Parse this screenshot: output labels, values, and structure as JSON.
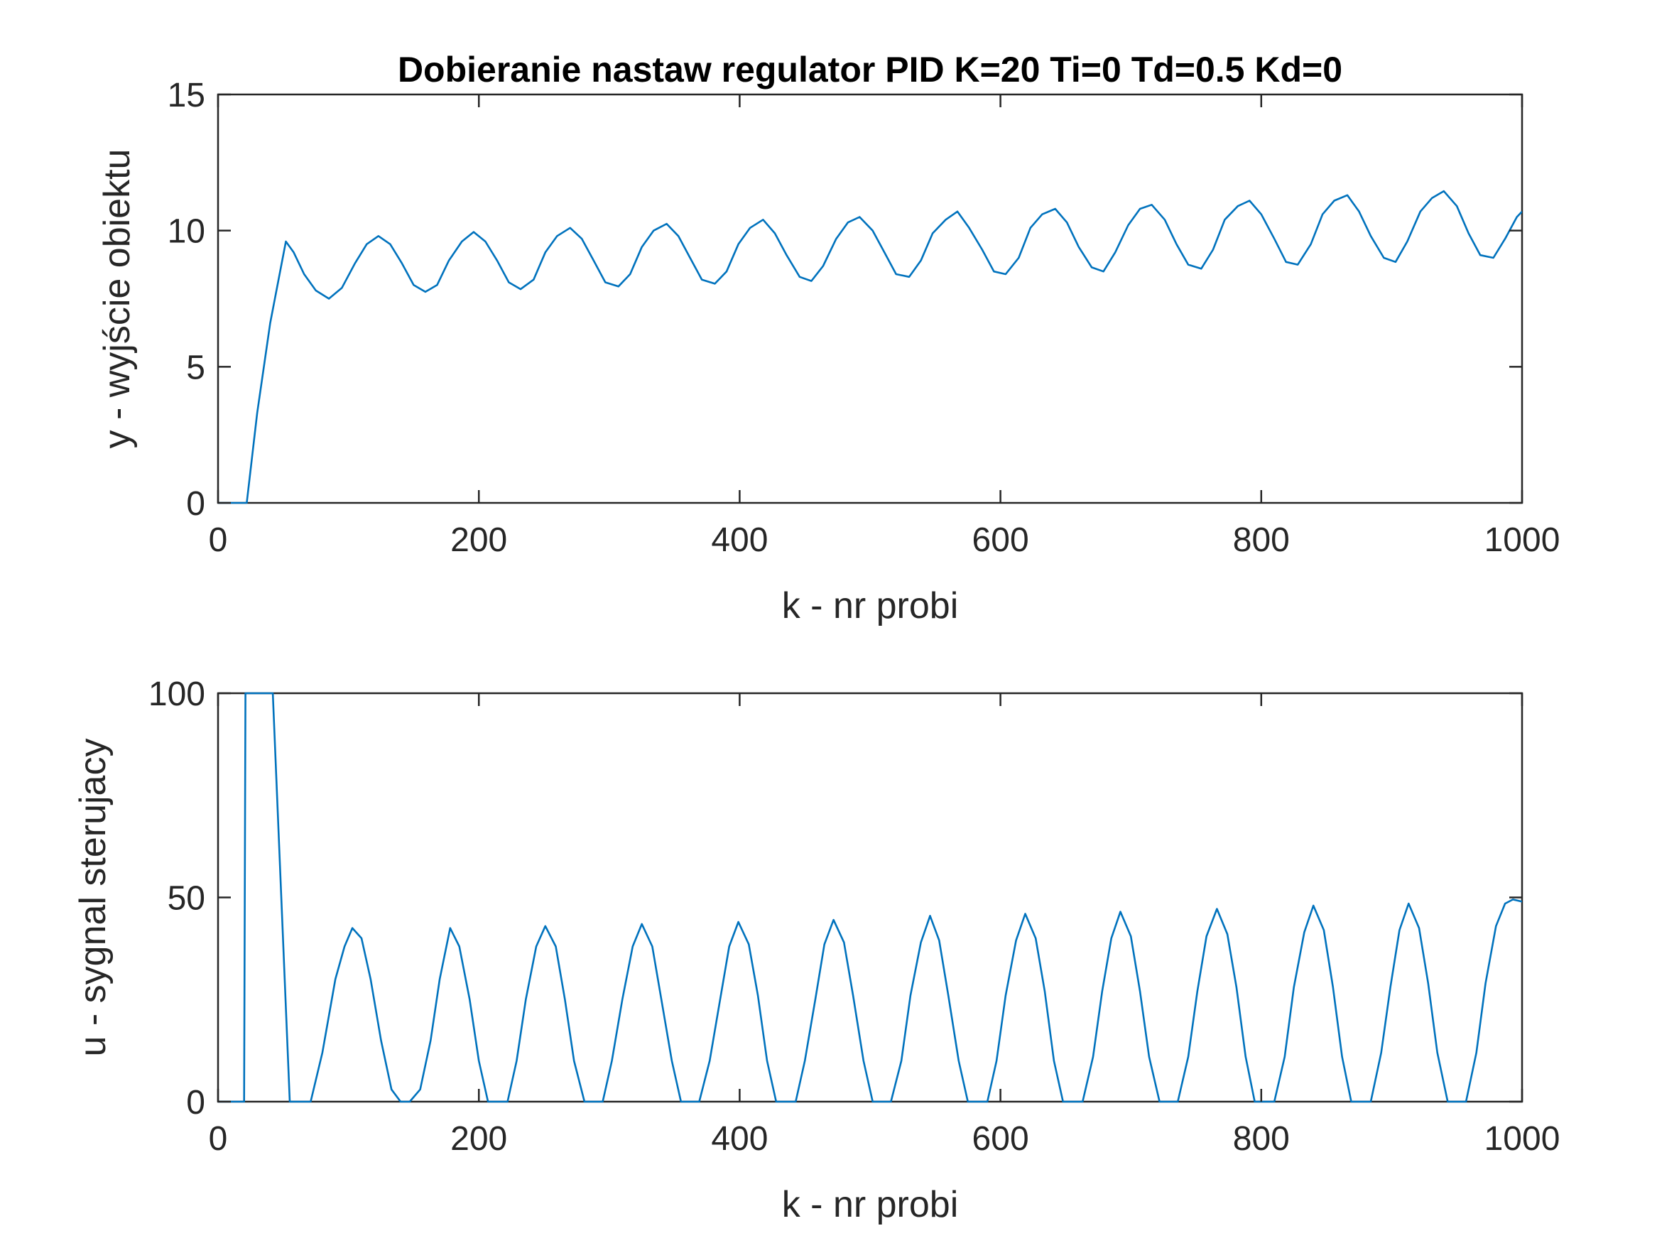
{
  "chart_data": [
    {
      "type": "line",
      "title": "Dobieranie nastaw regulator PID K=20 Ti=0 Td=0.5 Kd=0",
      "xlabel": "k - nr probi",
      "ylabel": "y - wyjście obiektu",
      "xlim": [
        0,
        1000
      ],
      "ylim": [
        0,
        15
      ],
      "xticks": [
        0,
        200,
        400,
        600,
        800,
        1000
      ],
      "yticks": [
        0,
        5,
        10,
        15
      ],
      "grid": false,
      "color": "#0072BD",
      "series": [
        {
          "x": [
            0,
            22,
            30,
            40,
            52,
            58,
            66,
            75,
            85,
            95,
            105,
            114,
            123,
            132,
            141,
            150,
            159,
            168,
            177,
            187,
            196,
            205,
            214,
            223,
            232,
            242,
            251,
            260,
            270,
            279,
            288,
            297,
            307,
            316,
            325,
            334,
            344,
            353,
            362,
            371,
            381,
            390,
            399,
            408,
            418,
            427,
            436,
            446,
            455,
            464,
            474,
            483,
            492,
            502,
            511,
            520,
            530,
            539,
            548,
            558,
            567,
            576,
            586,
            595,
            604,
            614,
            623,
            632,
            642,
            651,
            660,
            670,
            679,
            688,
            698,
            707,
            716,
            726,
            735,
            744,
            754,
            763,
            772,
            782,
            791,
            800,
            810,
            819,
            828,
            838,
            847,
            856,
            866,
            875,
            884,
            894,
            903,
            912,
            922,
            931,
            940,
            950,
            959,
            968,
            978,
            987,
            996,
            1000
          ],
          "y": [
            0,
            0,
            3.3,
            6.6,
            9.6,
            9.2,
            8.4,
            7.8,
            7.5,
            7.9,
            8.8,
            9.5,
            9.8,
            9.5,
            8.8,
            8.0,
            7.75,
            8.0,
            8.9,
            9.6,
            9.95,
            9.6,
            8.9,
            8.1,
            7.85,
            8.2,
            9.2,
            9.8,
            10.1,
            9.7,
            8.9,
            8.1,
            7.95,
            8.4,
            9.4,
            10.0,
            10.25,
            9.8,
            9.0,
            8.2,
            8.05,
            8.5,
            9.5,
            10.1,
            10.4,
            9.9,
            9.1,
            8.3,
            8.15,
            8.7,
            9.7,
            10.3,
            10.5,
            10.0,
            9.2,
            8.4,
            8.3,
            8.9,
            9.9,
            10.4,
            10.7,
            10.1,
            9.3,
            8.5,
            8.4,
            9.0,
            10.1,
            10.6,
            10.8,
            10.3,
            9.4,
            8.65,
            8.5,
            9.2,
            10.2,
            10.8,
            10.95,
            10.4,
            9.5,
            8.75,
            8.6,
            9.3,
            10.4,
            10.9,
            11.1,
            10.6,
            9.7,
            8.85,
            8.75,
            9.5,
            10.6,
            11.1,
            11.3,
            10.7,
            9.8,
            9.0,
            8.85,
            9.6,
            10.7,
            11.2,
            11.45,
            10.9,
            9.9,
            9.1,
            9.0,
            9.7,
            10.5,
            10.7
          ]
        }
      ]
    },
    {
      "type": "line",
      "title": "",
      "xlabel": "k - nr probi",
      "ylabel": "u - sygnal sterujacy",
      "xlim": [
        0,
        1000
      ],
      "ylim": [
        0,
        100
      ],
      "xticks": [
        0,
        200,
        400,
        600,
        800,
        1000
      ],
      "yticks": [
        0,
        50,
        100
      ],
      "grid": false,
      "color": "#0072BD",
      "series": [
        {
          "x": [
            0,
            20,
            21,
            42,
            55,
            71,
            80,
            90,
            97,
            103,
            110,
            117,
            125,
            133,
            140,
            147,
            155,
            163,
            170,
            178,
            185,
            193,
            200,
            207,
            215,
            222,
            229,
            236,
            244,
            251,
            259,
            266,
            273,
            281,
            288,
            295,
            302,
            310,
            318,
            325,
            333,
            340,
            348,
            355,
            362,
            369,
            377,
            385,
            392,
            399,
            407,
            414,
            421,
            428,
            436,
            443,
            450,
            458,
            465,
            472,
            480,
            487,
            495,
            502,
            509,
            516,
            524,
            531,
            539,
            546,
            553,
            560,
            568,
            575,
            583,
            590,
            597,
            604,
            612,
            619,
            627,
            634,
            641,
            648,
            656,
            663,
            671,
            678,
            685,
            692,
            700,
            707,
            714,
            722,
            729,
            736,
            744,
            751,
            758,
            766,
            774,
            781,
            788,
            795,
            803,
            810,
            818,
            825,
            833,
            840,
            848,
            855,
            862,
            869,
            877,
            884,
            892,
            899,
            906,
            913,
            921,
            928,
            935,
            943,
            950,
            957,
            965,
            972,
            980,
            987,
            993,
            1000
          ],
          "y": [
            0,
            0,
            100,
            100,
            0,
            0,
            12,
            30,
            38,
            42.5,
            40,
            30,
            15,
            3,
            0,
            0,
            3,
            15,
            30,
            42.5,
            38,
            25,
            10,
            0,
            0,
            0,
            10,
            25,
            38,
            43,
            38,
            25,
            10,
            0,
            0,
            0,
            10,
            25,
            38,
            43.5,
            38,
            25,
            10,
            0,
            0,
            0,
            10,
            25,
            38,
            44,
            38.5,
            26,
            10,
            0,
            0,
            0,
            10,
            25,
            38.5,
            44.5,
            39,
            26,
            10,
            0,
            0,
            0,
            10,
            26,
            39,
            45.5,
            39.5,
            26,
            10,
            0,
            0,
            0,
            10,
            26,
            39.5,
            46,
            40,
            27,
            10,
            0,
            0,
            0,
            11,
            27,
            40,
            46.5,
            40.5,
            27,
            11,
            0,
            0,
            0,
            11,
            27,
            40.5,
            47.2,
            41,
            28,
            11,
            0,
            0,
            0,
            11,
            28,
            41.5,
            48,
            42,
            28,
            11,
            0,
            0,
            0,
            12,
            28,
            42,
            48.5,
            42.5,
            29,
            12,
            0,
            0,
            0,
            12,
            29,
            43,
            48.5,
            49.5,
            49
          ]
        }
      ]
    }
  ]
}
